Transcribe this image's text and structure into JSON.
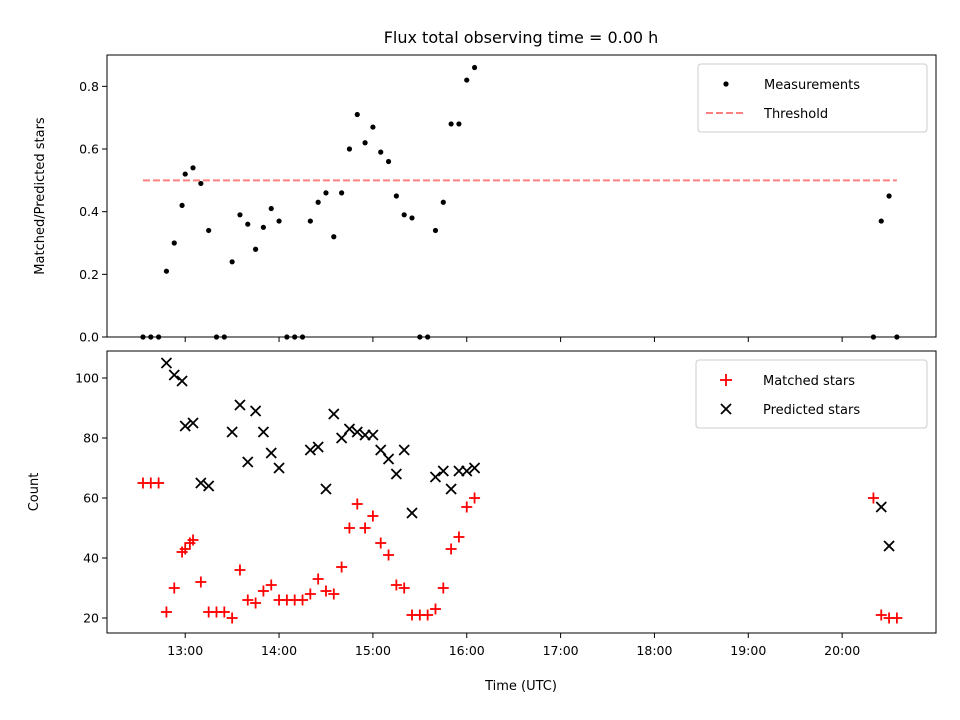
{
  "figure": {
    "title": "Flux total observing time = 0.00 h",
    "xlabel": "Time (UTC)",
    "x_ticks": [
      "13:00",
      "14:00",
      "15:00",
      "16:00",
      "17:00",
      "18:00",
      "19:00",
      "20:00"
    ]
  },
  "chart_data": [
    {
      "type": "scatter",
      "ylabel": "Matched/Predicted stars",
      "xlim": [
        "12:10",
        "21:00"
      ],
      "ylim": [
        0,
        0.9
      ],
      "y_ticks": [
        0.0,
        0.2,
        0.4,
        0.6,
        0.8
      ],
      "y_tick_labels": [
        "0.0",
        "0.2",
        "0.4",
        "0.6",
        "0.8"
      ],
      "legend": "top-right",
      "series": [
        {
          "name": "Measurements",
          "marker": "dot",
          "color": "#000000",
          "points": [
            [
              "12:33",
              0.0
            ],
            [
              "12:38",
              0.0
            ],
            [
              "12:43",
              0.0
            ],
            [
              "12:48",
              0.21
            ],
            [
              "12:53",
              0.3
            ],
            [
              "12:58",
              0.42
            ],
            [
              "13:00",
              0.52
            ],
            [
              "13:05",
              0.54
            ],
            [
              "13:10",
              0.49
            ],
            [
              "13:15",
              0.34
            ],
            [
              "13:20",
              0.0
            ],
            [
              "13:25",
              0.0
            ],
            [
              "13:30",
              0.24
            ],
            [
              "13:35",
              0.39
            ],
            [
              "13:40",
              0.36
            ],
            [
              "13:45",
              0.28
            ],
            [
              "13:50",
              0.35
            ],
            [
              "13:55",
              0.41
            ],
            [
              "14:00",
              0.37
            ],
            [
              "14:05",
              0.0
            ],
            [
              "14:10",
              0.0
            ],
            [
              "14:15",
              0.0
            ],
            [
              "14:20",
              0.37
            ],
            [
              "14:25",
              0.43
            ],
            [
              "14:30",
              0.46
            ],
            [
              "14:35",
              0.32
            ],
            [
              "14:40",
              0.46
            ],
            [
              "14:45",
              0.6
            ],
            [
              "14:50",
              0.71
            ],
            [
              "14:55",
              0.62
            ],
            [
              "15:00",
              0.67
            ],
            [
              "15:05",
              0.59
            ],
            [
              "15:10",
              0.56
            ],
            [
              "15:15",
              0.45
            ],
            [
              "15:20",
              0.39
            ],
            [
              "15:25",
              0.38
            ],
            [
              "15:30",
              0.0
            ],
            [
              "15:35",
              0.0
            ],
            [
              "15:40",
              0.34
            ],
            [
              "15:45",
              0.43
            ],
            [
              "15:50",
              0.68
            ],
            [
              "15:55",
              0.68
            ],
            [
              "16:00",
              0.82
            ],
            [
              "16:05",
              0.86
            ],
            [
              "20:20",
              0.0
            ],
            [
              "20:25",
              0.37
            ],
            [
              "20:30",
              0.45
            ],
            [
              "20:35",
              0.0
            ]
          ]
        },
        {
          "name": "Threshold",
          "marker": "dashed-line",
          "color": "#ff8080",
          "points": [
            [
              "12:33",
              0.5
            ],
            [
              "20:35",
              0.5
            ]
          ]
        }
      ]
    },
    {
      "type": "scatter",
      "ylabel": "Count",
      "xlim": [
        "12:10",
        "21:00"
      ],
      "ylim": [
        15,
        109
      ],
      "y_ticks": [
        20,
        40,
        60,
        80,
        100
      ],
      "y_tick_labels": [
        "20",
        "40",
        "60",
        "80",
        "100"
      ],
      "legend": "top-right",
      "series": [
        {
          "name": "Matched stars",
          "marker": "plus",
          "color": "#ff0000",
          "points": [
            [
              "12:33",
              65
            ],
            [
              "12:38",
              65
            ],
            [
              "12:43",
              65
            ],
            [
              "12:48",
              22
            ],
            [
              "12:53",
              30
            ],
            [
              "12:58",
              42
            ],
            [
              "13:00",
              43
            ],
            [
              "13:03",
              45
            ],
            [
              "13:05",
              46
            ],
            [
              "13:10",
              32
            ],
            [
              "13:15",
              22
            ],
            [
              "13:20",
              22
            ],
            [
              "13:25",
              22
            ],
            [
              "13:30",
              20
            ],
            [
              "13:35",
              36
            ],
            [
              "13:40",
              26
            ],
            [
              "13:45",
              25
            ],
            [
              "13:50",
              29
            ],
            [
              "13:55",
              31
            ],
            [
              "14:00",
              26
            ],
            [
              "14:05",
              26
            ],
            [
              "14:10",
              26
            ],
            [
              "14:15",
              26
            ],
            [
              "14:20",
              28
            ],
            [
              "14:25",
              33
            ],
            [
              "14:30",
              29
            ],
            [
              "14:35",
              28
            ],
            [
              "14:40",
              37
            ],
            [
              "14:45",
              50
            ],
            [
              "14:50",
              58
            ],
            [
              "14:55",
              50
            ],
            [
              "15:00",
              54
            ],
            [
              "15:05",
              45
            ],
            [
              "15:10",
              41
            ],
            [
              "15:15",
              31
            ],
            [
              "15:20",
              30
            ],
            [
              "15:25",
              21
            ],
            [
              "15:30",
              21
            ],
            [
              "15:35",
              21
            ],
            [
              "15:40",
              23
            ],
            [
              "15:45",
              30
            ],
            [
              "15:50",
              43
            ],
            [
              "15:55",
              47
            ],
            [
              "16:00",
              57
            ],
            [
              "16:05",
              60
            ],
            [
              "20:20",
              60
            ],
            [
              "20:25",
              21
            ],
            [
              "20:30",
              20
            ],
            [
              "20:35",
              20
            ]
          ]
        },
        {
          "name": "Predicted stars",
          "marker": "x",
          "color": "#000000",
          "points": [
            [
              "12:48",
              105
            ],
            [
              "12:53",
              101
            ],
            [
              "12:58",
              99
            ],
            [
              "13:00",
              84
            ],
            [
              "13:05",
              85
            ],
            [
              "13:10",
              65
            ],
            [
              "13:15",
              64
            ],
            [
              "13:30",
              82
            ],
            [
              "13:35",
              91
            ],
            [
              "13:40",
              72
            ],
            [
              "13:45",
              89
            ],
            [
              "13:50",
              82
            ],
            [
              "13:55",
              75
            ],
            [
              "14:00",
              70
            ],
            [
              "14:20",
              76
            ],
            [
              "14:25",
              77
            ],
            [
              "14:30",
              63
            ],
            [
              "14:35",
              88
            ],
            [
              "14:40",
              80
            ],
            [
              "14:45",
              83
            ],
            [
              "14:50",
              82
            ],
            [
              "14:55",
              81
            ],
            [
              "15:00",
              81
            ],
            [
              "15:05",
              76
            ],
            [
              "15:10",
              73
            ],
            [
              "15:15",
              68
            ],
            [
              "15:20",
              76
            ],
            [
              "15:25",
              55
            ],
            [
              "15:40",
              67
            ],
            [
              "15:45",
              69
            ],
            [
              "15:50",
              63
            ],
            [
              "15:55",
              69
            ],
            [
              "16:00",
              69
            ],
            [
              "16:05",
              70
            ],
            [
              "20:25",
              57
            ],
            [
              "20:30",
              44
            ]
          ]
        }
      ]
    }
  ]
}
